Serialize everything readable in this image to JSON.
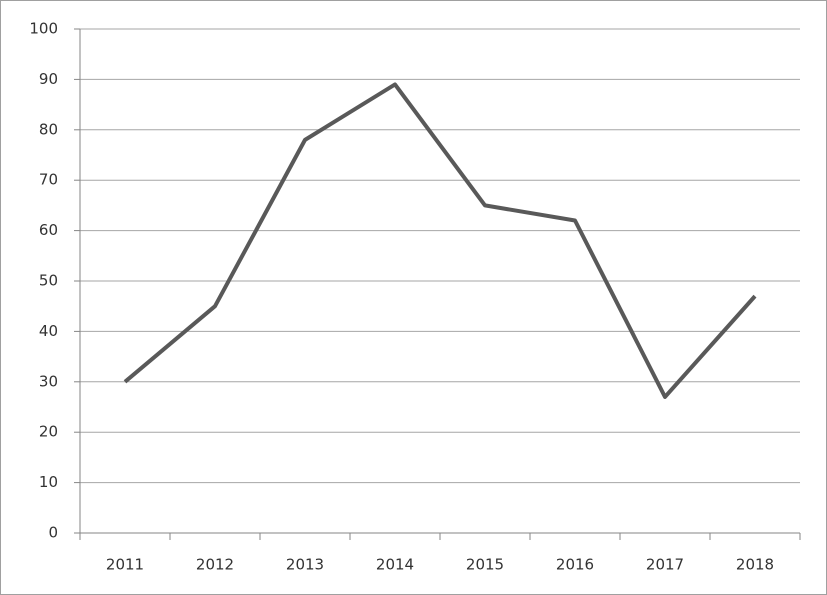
{
  "chart_data": {
    "type": "line",
    "categories": [
      "2011",
      "2012",
      "2013",
      "2014",
      "2015",
      "2016",
      "2017",
      "2018"
    ],
    "values": [
      30,
      45,
      78,
      89,
      65,
      62,
      27,
      47
    ],
    "color": "#595959",
    "ylim": [
      0,
      100
    ],
    "yticks": [
      0,
      10,
      20,
      30,
      40,
      50,
      60,
      70,
      80,
      90,
      100
    ],
    "grid": true
  }
}
